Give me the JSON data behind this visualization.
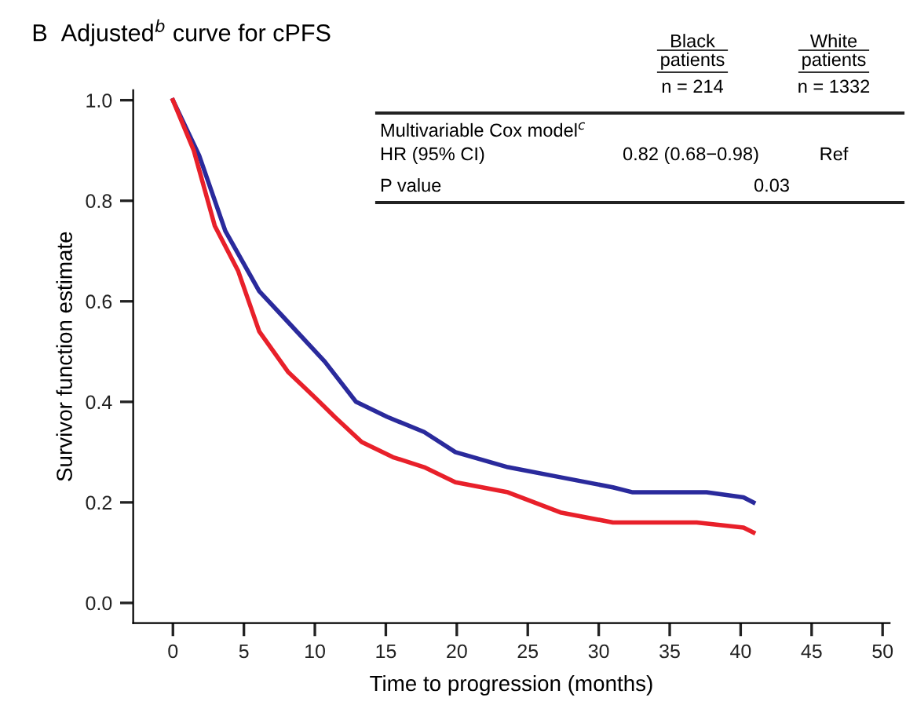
{
  "chart_data": {
    "type": "line",
    "title": "B  Adjusted$^{b}$ curve for cPFS",
    "xlabel": "Time to progression (months)",
    "ylabel": "Survivor function estimate",
    "xlim": [
      -2.8,
      50.5
    ],
    "xticks": [
      0,
      5,
      10,
      15,
      20,
      25,
      30,
      35,
      40,
      45,
      50
    ],
    "ylim": [
      -0.04,
      1.02
    ],
    "yticks": [
      {
        "value": 0,
        "label": "0.0"
      },
      0.2,
      0.4,
      0.6,
      0.8,
      {
        "value": 1,
        "label": "1.0"
      }
    ],
    "series": [
      {
        "color": "#2a2a9c",
        "x": [
          0,
          1.85,
          3.69,
          6.08,
          7.74,
          10.7,
          12.9,
          15.1,
          17.7,
          19.9,
          23.6,
          27.3,
          31.0,
          32.4,
          37.6,
          40.2,
          40.9
        ],
        "values": [
          1.0,
          0.89,
          0.74,
          0.62,
          0.57,
          0.48,
          0.4,
          0.37,
          0.34,
          0.3,
          0.27,
          0.25,
          0.23,
          0.22,
          0.22,
          0.21,
          0.2
        ]
      },
      {
        "color": "#e8202a",
        "x": [
          0,
          1.47,
          2.95,
          4.6,
          6.08,
          8.1,
          9.96,
          11.4,
          13.3,
          15.5,
          17.7,
          19.9,
          23.6,
          27.3,
          31.0,
          32.4,
          36.9,
          40.2,
          40.9
        ],
        "values": [
          1.0,
          0.9,
          0.75,
          0.66,
          0.54,
          0.46,
          0.41,
          0.37,
          0.32,
          0.29,
          0.27,
          0.24,
          0.22,
          0.18,
          0.16,
          0.16,
          0.16,
          0.15,
          0.14
        ]
      }
    ],
    "annotations": [
      "Black patients",
      "White patients",
      "n = 214",
      "n = 1332",
      "Multivariable Cox model$^{c}$",
      "HR (95% CI)",
      "0.82 (0.68−0.98)",
      "Ref",
      "P value",
      "0.03"
    ],
    "marker": "none",
    "line_style": "solid"
  }
}
